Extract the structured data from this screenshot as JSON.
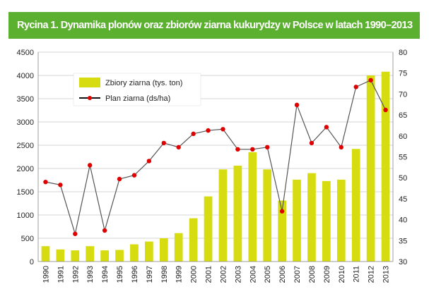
{
  "title": "Rycina 1. Dynamika plonów oraz zbiorów ziarna kukurydzy w Polsce w latach 1990–2013",
  "colors": {
    "title_bg": "#5cb030",
    "bar": "#d6dc10",
    "line": "#555555",
    "marker": "#e00000",
    "grid": "#c8c8c8"
  },
  "chart_data": {
    "type": "bar",
    "categories": [
      "1990",
      "1991",
      "1992",
      "1993",
      "1994",
      "1995",
      "1996",
      "1997",
      "1998",
      "1999",
      "2000",
      "2001",
      "2002",
      "2003",
      "2004",
      "2005",
      "2006",
      "2007",
      "2008",
      "2009",
      "2010",
      "2011",
      "2012",
      "2013"
    ],
    "series": [
      {
        "name": "Zbiory ziarna (tys. ton)",
        "type": "bar",
        "axis": "left",
        "values": [
          330,
          260,
          240,
          330,
          240,
          250,
          370,
          430,
          500,
          610,
          930,
          1400,
          1980,
          2060,
          2350,
          1980,
          1310,
          1760,
          1900,
          1730,
          1760,
          2420,
          4000,
          4080
        ]
      },
      {
        "name": "Plan ziarna (ds/ha)",
        "type": "line",
        "axis": "right",
        "values": [
          49.0,
          48.3,
          36.6,
          53.0,
          37.4,
          49.7,
          50.6,
          54.0,
          58.3,
          57.3,
          60.5,
          61.3,
          61.6,
          56.8,
          56.8,
          57.3,
          42.0,
          67.4,
          58.3,
          62.1,
          57.3,
          71.7,
          73.3,
          66.2
        ]
      }
    ],
    "y_left": {
      "min": 0,
      "max": 4500,
      "ticks": [
        0,
        500,
        1000,
        1500,
        2000,
        2500,
        3000,
        3500,
        4000,
        4500
      ]
    },
    "y_right": {
      "min": 30,
      "max": 80,
      "ticks": [
        30,
        35,
        40,
        45,
        50,
        55,
        60,
        65,
        70,
        75,
        80
      ]
    },
    "grid": true,
    "legend_position": "top-left"
  }
}
